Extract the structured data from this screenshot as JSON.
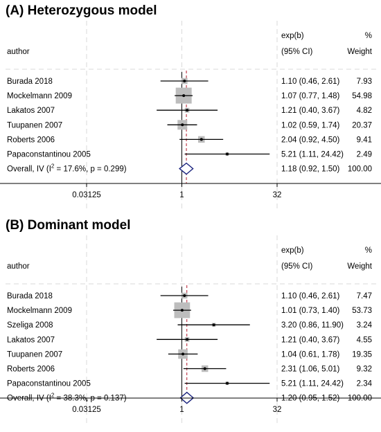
{
  "chart_data": [
    {
      "type": "forest",
      "title": "(A) Heterozygous model",
      "header": {
        "author": "author",
        "effect_line1": "exp(b)",
        "effect_line2": "(95% CI)",
        "weight_line1": "%",
        "weight_line2": "Weight"
      },
      "xscale": "log2",
      "xlim": [
        0.03125,
        32
      ],
      "xticks": [
        "0.03125",
        "1",
        "32"
      ],
      "studies": [
        {
          "author": "Burada 2018",
          "est": 1.1,
          "lo": 0.46,
          "hi": 2.61,
          "ci": "1.10 (0.46, 2.61)",
          "weight": "7.93",
          "w": 7.93
        },
        {
          "author": "Mockelmann 2009",
          "est": 1.07,
          "lo": 0.77,
          "hi": 1.48,
          "ci": "1.07 (0.77, 1.48)",
          "weight": "54.98",
          "w": 54.98
        },
        {
          "author": "Lakatos 2007",
          "est": 1.21,
          "lo": 0.4,
          "hi": 3.67,
          "ci": "1.21 (0.40, 3.67)",
          "weight": "4.82",
          "w": 4.82
        },
        {
          "author": "Tuupanen 2007",
          "est": 1.02,
          "lo": 0.59,
          "hi": 1.74,
          "ci": "1.02 (0.59, 1.74)",
          "weight": "20.37",
          "w": 20.37
        },
        {
          "author": "Roberts 2006",
          "est": 2.04,
          "lo": 0.92,
          "hi": 4.5,
          "ci": "2.04 (0.92, 4.50)",
          "weight": "9.41",
          "w": 9.41
        },
        {
          "author": "Papaconstantinou 2005",
          "est": 5.21,
          "lo": 1.11,
          "hi": 24.42,
          "ci": "5.21 (1.11, 24.42)",
          "weight": "2.49",
          "w": 2.49
        }
      ],
      "overall": {
        "label_pre": "Overall, IV (I",
        "sup": "2",
        "label_post": " = 17.6%, p = 0.299)",
        "est": 1.18,
        "lo": 0.92,
        "hi": 1.5,
        "ci": "1.18 (0.92, 1.50)",
        "weight": "100.00"
      }
    },
    {
      "type": "forest",
      "title": "(B) Dominant model",
      "header": {
        "author": "author",
        "effect_line1": "exp(b)",
        "effect_line2": "(95% CI)",
        "weight_line1": "%",
        "weight_line2": "Weight"
      },
      "xscale": "log2",
      "xlim": [
        0.03125,
        32
      ],
      "xticks": [
        "0.03125",
        "1",
        "32"
      ],
      "studies": [
        {
          "author": "Burada 2018",
          "est": 1.1,
          "lo": 0.46,
          "hi": 2.61,
          "ci": "1.10 (0.46, 2.61)",
          "weight": "7.47",
          "w": 7.47
        },
        {
          "author": "Mockelmann 2009",
          "est": 1.01,
          "lo": 0.73,
          "hi": 1.4,
          "ci": "1.01 (0.73, 1.40)",
          "weight": "53.73",
          "w": 53.73
        },
        {
          "author": "Szeliga 2008",
          "est": 3.2,
          "lo": 0.86,
          "hi": 11.9,
          "ci": "3.20 (0.86, 11.90)",
          "weight": "3.24",
          "w": 3.24
        },
        {
          "author": "Lakatos 2007",
          "est": 1.21,
          "lo": 0.4,
          "hi": 3.67,
          "ci": "1.21 (0.40, 3.67)",
          "weight": "4.55",
          "w": 4.55
        },
        {
          "author": "Tuupanen 2007",
          "est": 1.04,
          "lo": 0.61,
          "hi": 1.78,
          "ci": "1.04 (0.61, 1.78)",
          "weight": "19.35",
          "w": 19.35
        },
        {
          "author": "Roberts 2006",
          "est": 2.31,
          "lo": 1.06,
          "hi": 5.01,
          "ci": "2.31 (1.06, 5.01)",
          "weight": "9.32",
          "w": 9.32
        },
        {
          "author": "Papaconstantinou 2005",
          "est": 5.21,
          "lo": 1.11,
          "hi": 24.42,
          "ci": "5.21 (1.11, 24.42)",
          "weight": "2.34",
          "w": 2.34
        }
      ],
      "overall": {
        "label_pre": "Overall, IV (I",
        "sup": "2",
        "label_post": " = 38.3%, p = 0.137)",
        "est": 1.2,
        "lo": 0.95,
        "hi": 1.52,
        "ci": "1.20 (0.95, 1.52)",
        "weight": "100.00"
      }
    }
  ],
  "colors": {
    "box": "#bdbdbd",
    "ci_line": "#000000",
    "overall_line": "#b2182b",
    "diamond": "#1a237e",
    "grid": "#d9d9d9"
  }
}
